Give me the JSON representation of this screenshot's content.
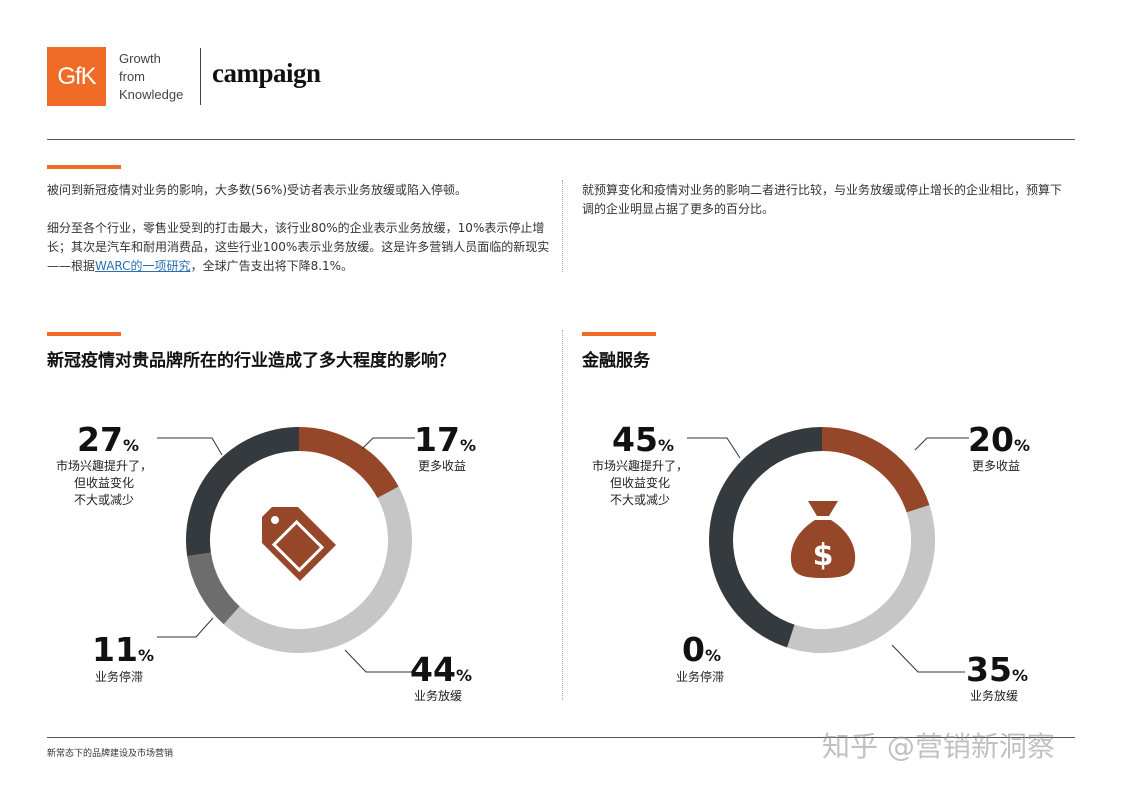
{
  "header": {
    "gfk_logo_text": "GfK",
    "gfk_tagline": [
      "Growth",
      "from",
      "Knowledge"
    ],
    "campaign_logo_text": "campaign"
  },
  "intro": {
    "left_p1": "被问到新冠疫情对业务的影响，大多数(56%)受访者表示业务放缓或陷入停顿。",
    "left_p2_a": "细分至各个行业，零售业受到的打击最大，该行业80%的企业表示业务放缓，10%表示停止增长；其次是汽车和耐用消费品，这些行业100%表示业务放缓。这是许多营销人员面临的新现实——根据",
    "left_p2_link": "WARC的一项研究",
    "left_p2_b": "，全球广告支出将下降8.1%。",
    "right_p1": "就预算变化和疫情对业务的影响二者进行比较，与业务放缓或停止增长的企业相比，预算下调的企业明显占据了更多的百分比。"
  },
  "chart_data": [
    {
      "type": "pie",
      "title": "新冠疫情对贵品牌所在的行业造成了多大程度的影响？",
      "icon": "price-tag-icon",
      "slices": [
        {
          "label": "更多收益",
          "value": 17,
          "color": "#96472a"
        },
        {
          "label": "业务放缓",
          "value": 44,
          "color": "#c6c6c6"
        },
        {
          "label": "业务停滞",
          "value": 11,
          "color": "#6d6d6e"
        },
        {
          "label": "市场兴趣提升了，但收益变化不大或减少",
          "value": 27,
          "color": "#353a3e"
        }
      ]
    },
    {
      "type": "pie",
      "title": "金融服务",
      "icon": "money-bag-icon",
      "slices": [
        {
          "label": "更多收益",
          "value": 20,
          "color": "#96472a"
        },
        {
          "label": "业务放缓",
          "value": 35,
          "color": "#c6c6c6"
        },
        {
          "label": "业务停滞",
          "value": 0,
          "color": "#6d6d6e"
        },
        {
          "label": "市场兴趣提升了，但收益变化不大或减少",
          "value": 45,
          "color": "#353a3e"
        }
      ]
    }
  ],
  "callouts": [
    {
      "more": {
        "num": "17",
        "pct": "%",
        "label": "更多收益"
      },
      "slow": {
        "num": "44",
        "pct": "%",
        "label": "业务放缓"
      },
      "stall": {
        "num": "11",
        "pct": "%",
        "label": "业务停滞"
      },
      "interest": {
        "num": "27",
        "pct": "%",
        "lines": [
          "市场兴趣提升了，",
          "但收益变化",
          "不大或减少"
        ]
      }
    },
    {
      "more": {
        "num": "20",
        "pct": "%",
        "label": "更多收益"
      },
      "slow": {
        "num": "35",
        "pct": "%",
        "label": "业务放缓"
      },
      "stall": {
        "num": "0",
        "pct": "%",
        "label": "业务停滞"
      },
      "interest": {
        "num": "45",
        "pct": "%",
        "lines": [
          "市场兴趣提升了，",
          "但收益变化",
          "不大或减少"
        ]
      }
    }
  ],
  "footer": {
    "text": "新常态下的品牌建设及市场营销",
    "watermark": "知乎 @营销新洞察"
  }
}
